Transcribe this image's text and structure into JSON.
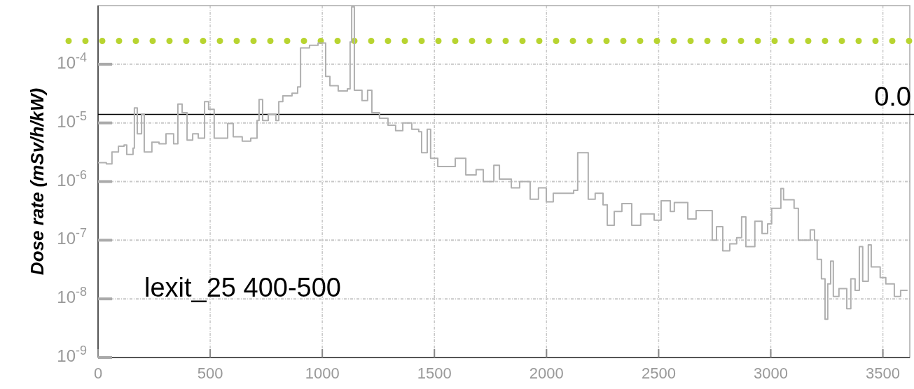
{
  "chart_data": {
    "type": "step",
    "ylabel": "Dose rate (mSv/h/kW)",
    "log": "y",
    "grid": true,
    "xlim": [
      0,
      3620
    ],
    "ylim": [
      1e-09,
      0.001
    ],
    "xticks": [
      0,
      500,
      1000,
      1500,
      2000,
      2500,
      3000,
      3500
    ],
    "yticks": [
      {
        "value": 1e-09,
        "label": "10$^{-9}$"
      },
      {
        "value": 1e-08,
        "label": "10$^{-8}$"
      },
      {
        "value": 1e-07,
        "label": "10$^{-7}$"
      },
      {
        "value": 1e-06,
        "label": "10$^{-6}$"
      },
      {
        "value": 1e-05,
        "label": "10$^{-5}$"
      },
      {
        "value": 0.0001,
        "label": "10$^{-4}$"
      }
    ],
    "annotations": [
      "lexit_25 400-500"
    ],
    "ref_lines": [
      {
        "axis": "y",
        "value": 0.00025,
        "color": "#b8d430",
        "line_style": "dotted"
      },
      {
        "axis": "y",
        "value": 1.4e-05,
        "label": "0.0",
        "color": "#000000",
        "line_style": "solid"
      }
    ],
    "series": [
      {
        "color": "#b0b0b0",
        "x": [
          0,
          12,
          37,
          62,
          91,
          116,
          128,
          156,
          162,
          175,
          194,
          206,
          240,
          272,
          303,
          337,
          356,
          375,
          397,
          422,
          447,
          475,
          493,
          518,
          553,
          578,
          603,
          643,
          681,
          709,
          718,
          734,
          759,
          793,
          806,
          824,
          865,
          890,
          903,
          943,
          981,
          1006,
          1015,
          1034,
          1071,
          1112,
          1124,
          1131,
          1143,
          1177,
          1202,
          1221,
          1255,
          1293,
          1327,
          1359,
          1399,
          1430,
          1443,
          1468,
          1483,
          1515,
          1568,
          1593,
          1640,
          1686,
          1718,
          1765,
          1790,
          1843,
          1880,
          1927,
          1964,
          1999,
          2030,
          2121,
          2139,
          2167,
          2186,
          2217,
          2252,
          2271,
          2302,
          2336,
          2380,
          2420,
          2480,
          2511,
          2552,
          2570,
          2630,
          2667,
          2720,
          2739,
          2758,
          2786,
          2817,
          2848,
          2870,
          2889,
          2929,
          2961,
          2986,
          3004,
          3045,
          3057,
          3104,
          3123,
          3176,
          3195,
          3207,
          3226,
          3242,
          3254,
          3267,
          3279,
          3304,
          3339,
          3357,
          3376,
          3395,
          3410,
          3435,
          3448,
          3488,
          3513,
          3551,
          3579,
          3610
        ],
        "values": [
          2.1e-06,
          2.1e-06,
          2e-06,
          3.2e-06,
          4e-06,
          4.2e-06,
          2.9e-06,
          3.7e-06,
          1.8e-05,
          6.5e-06,
          1.4e-05,
          3.2e-06,
          4.7e-06,
          4.4e-06,
          6.5e-06,
          4.4e-06,
          2.1e-05,
          1.5e-05,
          5.1e-06,
          6.5e-06,
          5.5e-06,
          2.3e-05,
          1.7e-05,
          5.5e-06,
          5.5e-06,
          9.8e-06,
          5.8e-06,
          4.9e-06,
          5.5e-06,
          1.1e-05,
          2.5e-05,
          1.1e-05,
          1.4e-05,
          1.1e-05,
          2.3e-05,
          2.9e-05,
          3.2e-05,
          4.1e-05,
          0.00019,
          0.00021,
          0.00023,
          0.00023,
          6.2e-05,
          4.3e-05,
          3.5e-05,
          3.8e-05,
          0.00024,
          0.00095,
          3.6e-05,
          2.4e-05,
          3.6e-05,
          1.5e-05,
          1.2e-05,
          9.1e-06,
          7.4e-06,
          1e-05,
          7.8e-06,
          7.1e-06,
          3.1e-06,
          7.8e-06,
          2.5e-06,
          1.8e-06,
          1.8e-06,
          2.5e-06,
          1.3e-06,
          1.6e-06,
          1e-06,
          1.9e-06,
          1.1e-06,
          7.8e-07,
          1e-06,
          5e-07,
          7.8e-07,
          4.5e-07,
          6.3e-07,
          7.1e-07,
          3.1e-06,
          3.1e-06,
          5e-07,
          6.3e-07,
          4e-07,
          1.8e-07,
          3.1e-07,
          4.2e-07,
          1.8e-07,
          2.8e-07,
          2.2e-07,
          4.7e-07,
          3.1e-07,
          4.4e-07,
          2.3e-07,
          3.2e-07,
          3.2e-07,
          1e-07,
          1.7e-07,
          6.6e-08,
          8.7e-08,
          1.1e-07,
          2.5e-07,
          7.8e-08,
          2.1e-07,
          1.3e-07,
          1.9e-07,
          3.5e-07,
          7.6e-07,
          4.9e-07,
          3.5e-07,
          1e-07,
          1.5e-07,
          1e-07,
          4.7e-08,
          2.2e-08,
          4.5e-09,
          1.8e-08,
          4.4e-08,
          1.1e-08,
          1.5e-08,
          6.8e-09,
          2.2e-08,
          1.4e-08,
          7.8e-08,
          2e-08,
          8.3e-08,
          3.5e-08,
          2.3e-08,
          1.8e-08,
          1.1e-08,
          1.4e-08,
          1.4e-08
        ]
      }
    ]
  }
}
